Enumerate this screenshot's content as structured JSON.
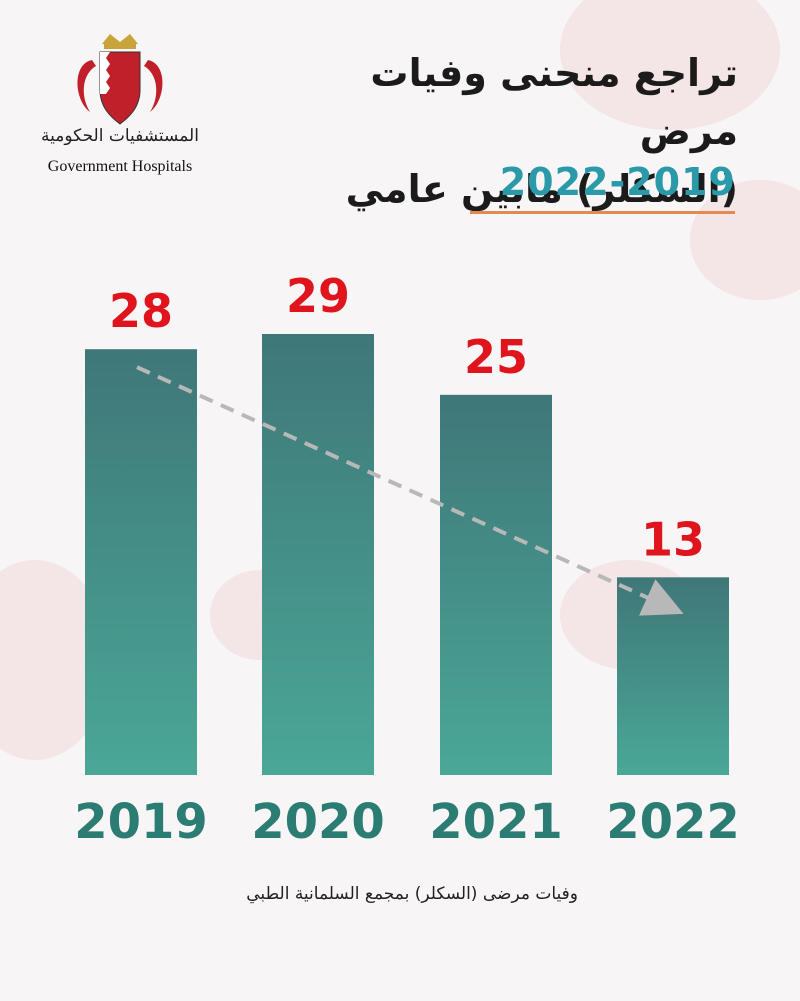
{
  "logo": {
    "arabic_name": "المستشفيات الحكومية",
    "english_name": "Government Hospitals",
    "icon": "bahrain-emblem-icon"
  },
  "title": {
    "line1": "تراجع منحنى وفيات مرض",
    "line2": "(السكلر) مابين عامي",
    "range": "2022-2019"
  },
  "footnote": "وفيات مرضى (السكلر) بمجمع السلمانية الطبي",
  "colors": {
    "bar_top": "#3f7778",
    "bar_bottom": "#4aa797",
    "value_label": "#e0141c",
    "year_label": "#2b7c73",
    "title_range": "#2a9aa9",
    "rule": "#e58a4e",
    "trend_arrow": "#b8b8b8"
  },
  "chart_data": {
    "type": "bar",
    "categories": [
      "2019",
      "2020",
      "2021",
      "2022"
    ],
    "values": [
      28,
      29,
      25,
      13
    ],
    "ylim": [
      0,
      29
    ],
    "grid": false,
    "trend_arrow": true
  }
}
